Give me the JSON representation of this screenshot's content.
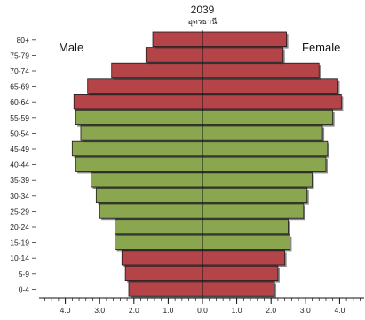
{
  "chart_data": {
    "type": "bar",
    "title": "2039",
    "subtitle": "อุดรธานี",
    "legend_left": "Male",
    "legend_right": "Female",
    "categories": [
      "0-4",
      "5-9",
      "10-14",
      "15-19",
      "20-24",
      "25-29",
      "30-34",
      "35-39",
      "40-44",
      "45-49",
      "50-54",
      "55-59",
      "60-64",
      "65-69",
      "70-74",
      "75-79",
      "80+"
    ],
    "series": [
      {
        "name": "Male",
        "values": [
          2.15,
          2.25,
          2.35,
          2.55,
          2.55,
          3.0,
          3.1,
          3.25,
          3.7,
          3.8,
          3.55,
          3.7,
          3.75,
          3.35,
          2.65,
          1.65,
          1.45
        ]
      },
      {
        "name": "Female",
        "values": [
          2.1,
          2.2,
          2.4,
          2.55,
          2.5,
          2.95,
          3.05,
          3.2,
          3.6,
          3.65,
          3.5,
          3.8,
          4.05,
          3.95,
          3.4,
          2.35,
          2.45
        ]
      }
    ],
    "highlight_groups": [
      "15-19",
      "20-24",
      "25-29",
      "30-34",
      "35-39",
      "40-44",
      "45-49",
      "50-54",
      "55-59"
    ],
    "xlim": [
      -4.5,
      4.5
    ],
    "x_ticks": [
      -4,
      -3,
      -2,
      -1,
      0,
      1,
      2,
      3,
      4
    ],
    "x_tick_labels": [
      "4.0",
      "3.0",
      "2.0",
      "1.0",
      "0.0",
      "1.0",
      "2.0",
      "3.0",
      "4.0"
    ],
    "colors": {
      "dependent": "#b54449",
      "working": "#8aa64f",
      "border": "#1a1a1a"
    }
  }
}
